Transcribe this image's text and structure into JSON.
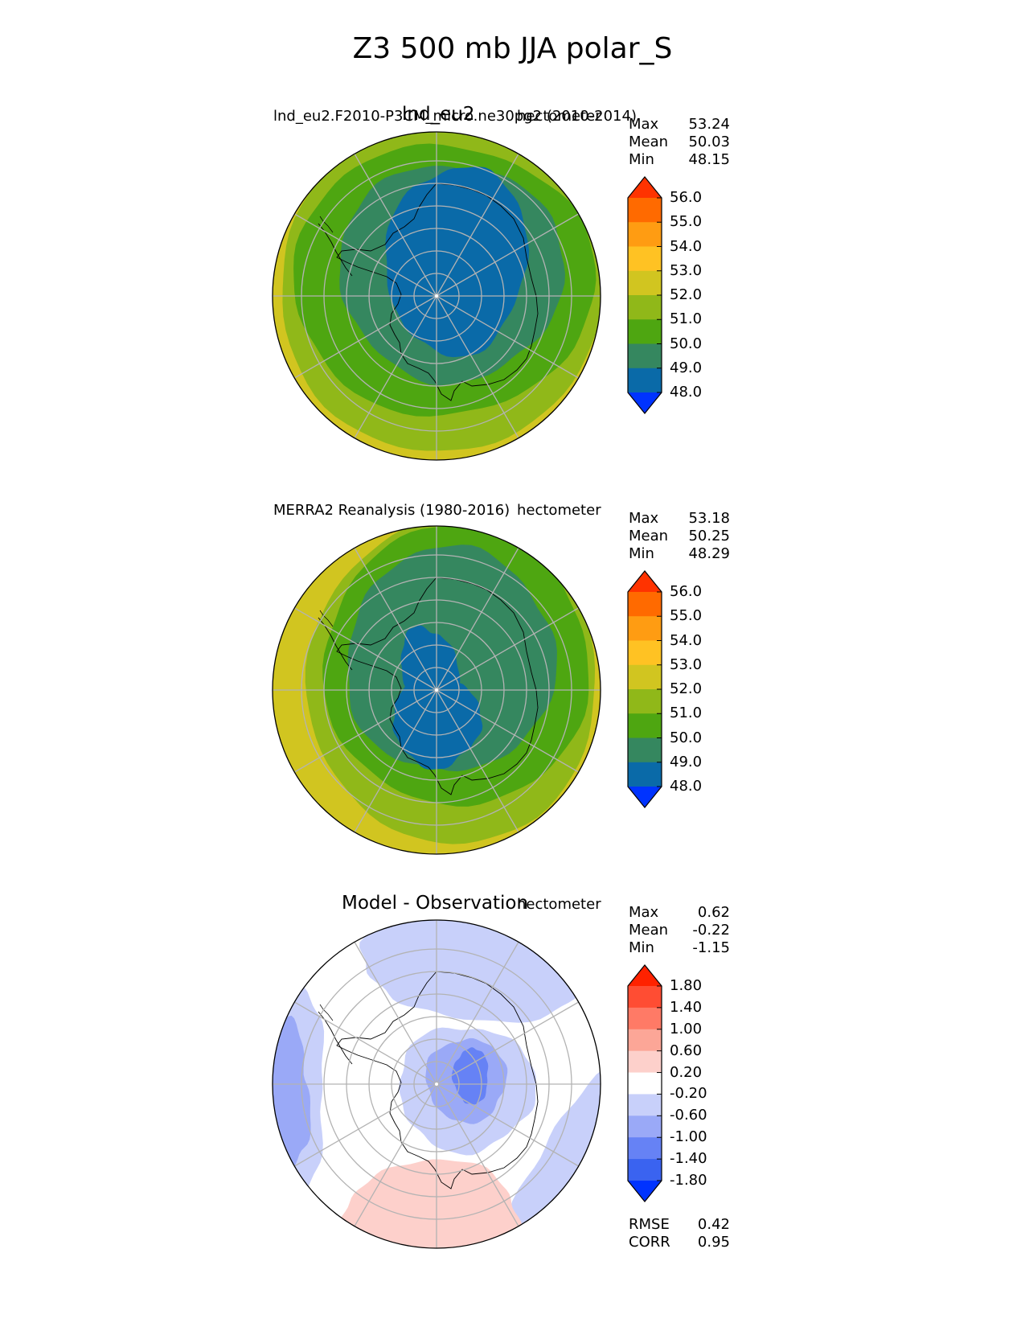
{
  "page_title": "Z3 500 mb JJA polar_S",
  "chart_data": [
    {
      "type": "heatmap",
      "projection": "south-polar-stereographic",
      "panel_title": "lnd_eu2",
      "case_name": "lnd_eu2.F2010-P3CM_micro.ne30pg2 (2010-2014)",
      "units": "hectometer",
      "stats": {
        "max_label": "Max",
        "max": "53.24",
        "mean_label": "Mean",
        "mean": "50.03",
        "min_label": "Min",
        "min": "48.15"
      },
      "levels": [
        "48.0",
        "49.0",
        "50.0",
        "51.0",
        "52.0",
        "53.0",
        "54.0",
        "55.0",
        "56.0"
      ],
      "level_values": [
        48,
        49,
        50,
        51,
        52,
        53,
        54,
        55,
        56
      ],
      "field_approx": {
        "center_value": 48.2,
        "gradient_direction": "stronger toward lower edge (Pacific sector)",
        "contour_bands": [
          {
            "upper": 49.0,
            "color": "#0a6aa8"
          },
          {
            "upper": 50.0,
            "color": "#35875f"
          },
          {
            "upper": 51.0,
            "color": "#4ea611"
          },
          {
            "upper": 52.0,
            "color": "#90b819"
          },
          {
            "upper": 53.0,
            "color": "#d1c520"
          },
          {
            "upper": 54.0,
            "color": "#ffc223"
          }
        ]
      }
    },
    {
      "type": "heatmap",
      "projection": "south-polar-stereographic",
      "panel_title": "",
      "case_name": "MERRA2 Reanalysis (1980-2016)",
      "units": "hectometer",
      "stats": {
        "max_label": "Max",
        "max": "53.18",
        "mean_label": "Mean",
        "mean": "50.25",
        "min_label": "Min",
        "min": "48.29"
      },
      "levels": [
        "48.0",
        "49.0",
        "50.0",
        "51.0",
        "52.0",
        "53.0",
        "54.0",
        "55.0",
        "56.0"
      ],
      "level_values": [
        48,
        49,
        50,
        51,
        52,
        53,
        54,
        55,
        56
      ],
      "field_approx": {
        "center_value": 48.3,
        "gradient_direction": "stronger toward left and lower edge",
        "contour_bands": [
          {
            "upper": 49.0,
            "color": "#0a6aa8"
          },
          {
            "upper": 50.0,
            "color": "#35875f"
          },
          {
            "upper": 51.0,
            "color": "#4ea611"
          },
          {
            "upper": 52.0,
            "color": "#90b819"
          },
          {
            "upper": 53.0,
            "color": "#d1c520"
          }
        ]
      }
    },
    {
      "type": "heatmap",
      "projection": "south-polar-stereographic",
      "panel_title": "Model - Observation",
      "case_name": "",
      "units": "hectometer",
      "stats": {
        "max_label": "Max",
        "max": "0.62",
        "mean_label": "Mean",
        "mean": "-0.22",
        "min_label": "Min",
        "min": "-1.15"
      },
      "levels": [
        "-1.80",
        "-1.40",
        "-1.00",
        "-0.60",
        "-0.20",
        "0.20",
        "0.60",
        "1.00",
        "1.40",
        "1.80"
      ],
      "level_values": [
        -1.8,
        -1.4,
        -1.0,
        -0.6,
        -0.2,
        0.2,
        0.6,
        1.0,
        1.4,
        1.8
      ],
      "field_approx": {
        "negative_regions": [
          "center-right near pole",
          "left edge",
          "top",
          "right edge"
        ],
        "positive_regions": [
          "lower center"
        ]
      },
      "metrics": {
        "rmse_label": "RMSE",
        "rmse": "0.42",
        "corr_label": "CORR",
        "corr": "0.95"
      }
    }
  ],
  "colors": {
    "abs_colormap": [
      "#0033ff",
      "#0a6aa8",
      "#35875f",
      "#4ea611",
      "#90b819",
      "#d1c520",
      "#ffc223",
      "#ff9c12",
      "#ff6a00",
      "#ff3300"
    ],
    "diff_colormap": [
      "#0033ff",
      "#3a63f0",
      "#6682f5",
      "#9aa9f7",
      "#c8d0fa",
      "#ffffff",
      "#fdd0cb",
      "#fca697",
      "#ff7a66",
      "#ff4d33",
      "#ff2200"
    ],
    "grid": "#b3b3b3",
    "coast": "#000000"
  }
}
